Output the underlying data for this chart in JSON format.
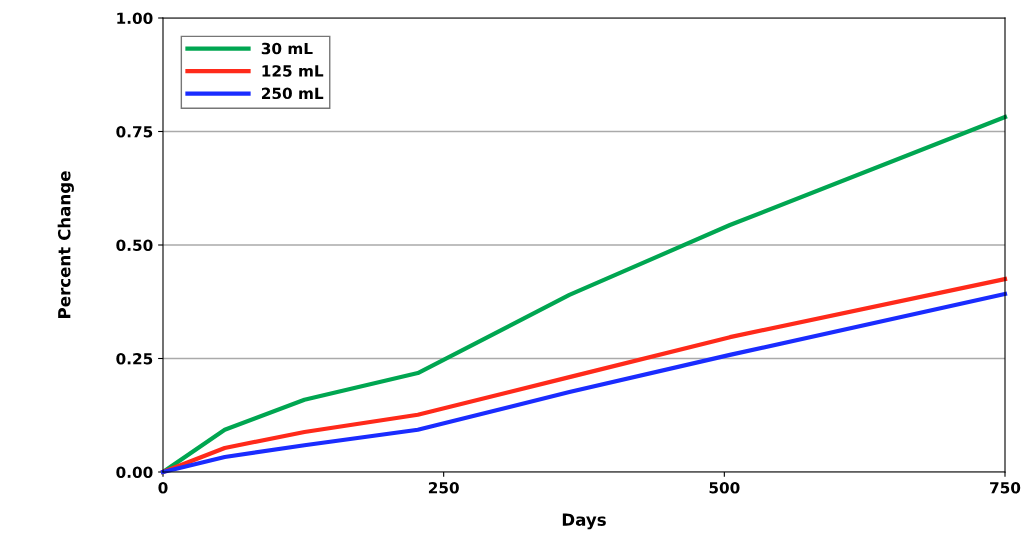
{
  "chart_data": {
    "type": "line",
    "xlabel": "Days",
    "ylabel": "Percent Change",
    "x": [
      0,
      55,
      126,
      227,
      362,
      505,
      750
    ],
    "series": [
      {
        "name": "30 mL",
        "color": "#00a651",
        "values": [
          0,
          0.093,
          0.159,
          0.218,
          0.39,
          0.544,
          0.782
        ]
      },
      {
        "name": "125 mL",
        "color": "#ff2a1a",
        "values": [
          0,
          0.053,
          0.088,
          0.126,
          0.209,
          0.297,
          0.425
        ]
      },
      {
        "name": "250 mL",
        "color": "#1a2cff",
        "values": [
          0,
          0.033,
          0.059,
          0.093,
          0.176,
          0.258,
          0.392
        ]
      }
    ],
    "xlim": [
      0,
      750
    ],
    "xticks": [
      0,
      250,
      500,
      750
    ],
    "ylim": [
      0,
      1
    ],
    "yticks": [
      {
        "value": 0,
        "label": "0.00"
      },
      {
        "value": 0.25,
        "label": "0.25"
      },
      {
        "value": 0.5,
        "label": "0.50"
      },
      {
        "value": 0.75,
        "label": "0.75"
      },
      {
        "value": 1,
        "label": "1.00"
      }
    ],
    "grid": "y",
    "legend": "top left"
  }
}
